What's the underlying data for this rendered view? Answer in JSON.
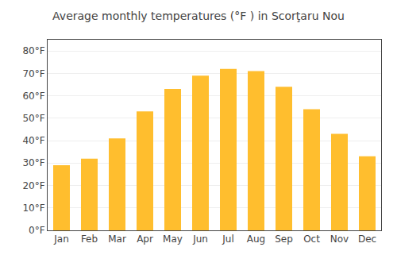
{
  "chart_data": {
    "type": "bar",
    "title": "Average monthly temperatures (°F ) in Scorţaru Nou",
    "categories": [
      "Jan",
      "Feb",
      "Mar",
      "Apr",
      "May",
      "Jun",
      "Jul",
      "Aug",
      "Sep",
      "Oct",
      "Nov",
      "Dec"
    ],
    "values": [
      29,
      32,
      41,
      53,
      63,
      69,
      72,
      71,
      64,
      54,
      43,
      33
    ],
    "color": "#FFBE2E",
    "ylim": [
      0,
      85
    ],
    "yticks": [
      {
        "value": 0,
        "label": "0°F"
      },
      {
        "value": 10,
        "label": "10°F"
      },
      {
        "value": 20,
        "label": "20°F"
      },
      {
        "value": 30,
        "label": "30°F"
      },
      {
        "value": 40,
        "label": "40°F"
      },
      {
        "value": 50,
        "label": "50°F"
      },
      {
        "value": 60,
        "label": "60°F"
      },
      {
        "value": 70,
        "label": "70°F"
      },
      {
        "value": 80,
        "label": "80°F"
      }
    ],
    "grid": true
  }
}
